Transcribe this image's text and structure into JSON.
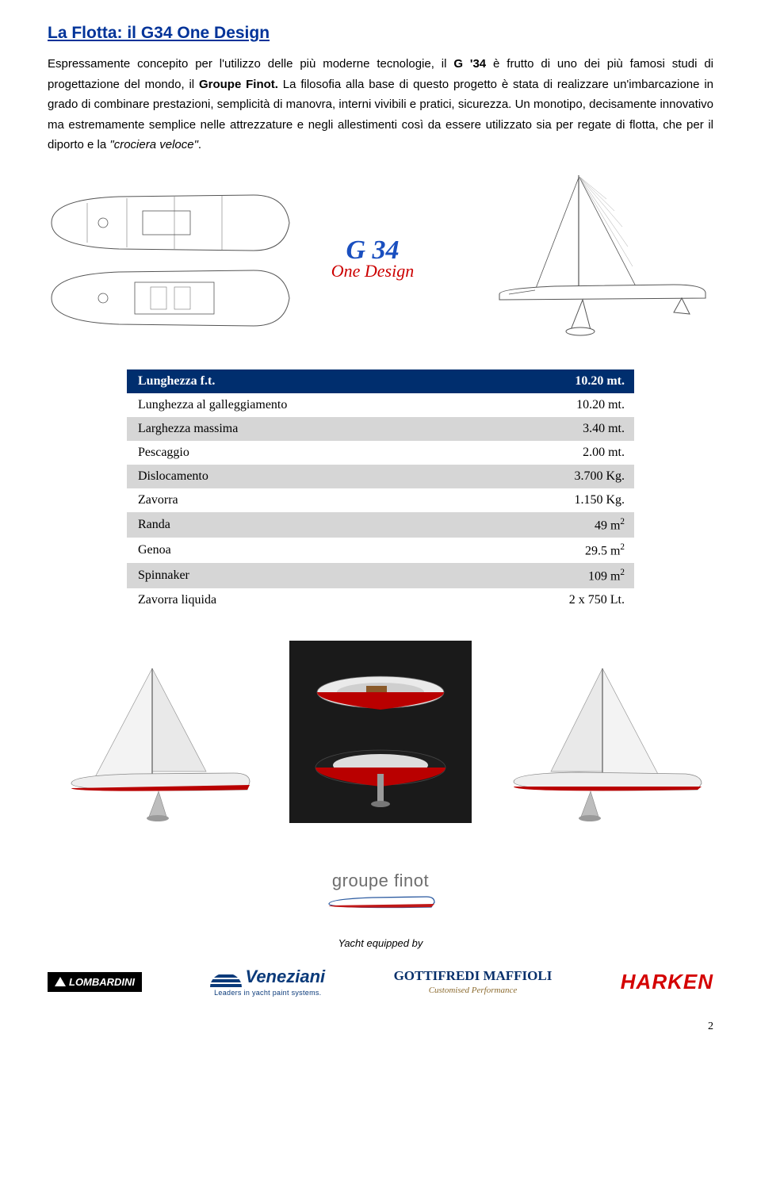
{
  "title": "La Flotta: il G34 One Design",
  "paragraph_parts": {
    "p1a": "Espressamente concepito per l'utilizzo delle più moderne tecnologie, il ",
    "p1b": "G '34",
    "p1c": " è frutto di uno dei più famosi studi di progettazione del mondo, il ",
    "p1d": "Groupe Finot.",
    "p1e": " La filosofia alla base di questo progetto è stata di realizzare un'imbarcazione in grado di combinare prestazioni, semplicità di manovra, interni vivibili e pratici, sicurezza. Un monotipo, decisamente innovativo ma estremamente semplice nelle attrezzature e negli allestimenti così da essere utilizzato sia per regate di flotta, che per il diporto e la ",
    "p1f": "\"crociera veloce\"",
    "p1g": "."
  },
  "logo": {
    "line1": "G 34",
    "line2": "One Design"
  },
  "specs": [
    {
      "label": "Lunghezza f.t.",
      "value": "10.20 mt.",
      "header": true
    },
    {
      "label": "Lunghezza al galleggiamento",
      "value": "10.20 mt.",
      "header": false
    },
    {
      "label": "Larghezza massima",
      "value": "3.40 mt.",
      "header": false
    },
    {
      "label": "Pescaggio",
      "value": "2.00 mt.",
      "header": false
    },
    {
      "label": "Dislocamento",
      "value": "3.700 Kg.",
      "header": false
    },
    {
      "label": "Zavorra",
      "value": "1.150 Kg.",
      "header": false
    },
    {
      "label": "Randa",
      "value": "49 m",
      "sup": "2",
      "header": false
    },
    {
      "label": "Genoa",
      "value": "29.5 m",
      "sup": "2",
      "header": false
    },
    {
      "label": "Spinnaker",
      "value": "109 m",
      "sup": "2",
      "header": false
    },
    {
      "label": "Zavorra liquida",
      "value": "2 x 750 Lt.",
      "header": false
    }
  ],
  "finot": "groupe finot",
  "equipped": "Yacht equipped by",
  "sponsors": {
    "lombardini": "LOMBARDINI",
    "veneziani": {
      "name": "Veneziani",
      "sub": "Leaders in yacht paint systems."
    },
    "gotti": {
      "name": "GOTTIFREDI MAFFIOLI",
      "sub": "Customised Performance"
    },
    "harken": "HARKEN"
  },
  "page_number": "2",
  "colors": {
    "title": "#003399",
    "table_header_bg": "#002e6e",
    "table_alt_bg": "#d6d6d6",
    "harken": "#d40000",
    "veneziani": "#0a3a7a",
    "logo_blue": "#1a4fbf",
    "logo_red": "#cc0000"
  }
}
